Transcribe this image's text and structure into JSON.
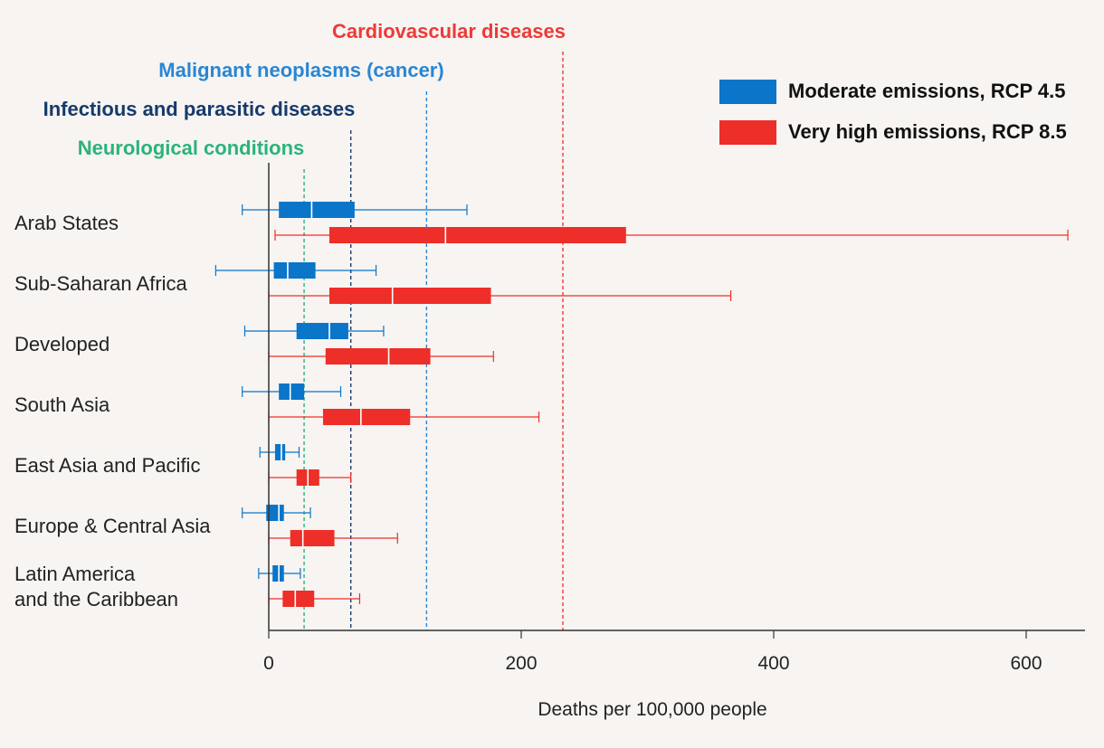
{
  "chart_data": {
    "type": "box",
    "xlabel": "Deaths per 100,000 people",
    "xlim": [
      0,
      650
    ],
    "xticks": [
      0,
      200,
      400,
      600
    ],
    "categories": [
      "Arab States",
      "Sub-Saharan Africa",
      "Developed",
      "South Asia",
      "East Asia and Pacific",
      "Europe & Central Asia",
      "Latin America and the Caribbean"
    ],
    "category_lines": [
      [
        "Arab States"
      ],
      [
        "Sub-Saharan Africa"
      ],
      [
        "Developed"
      ],
      [
        "South Asia"
      ],
      [
        "East Asia and Pacific"
      ],
      [
        "Europe & Central Asia"
      ],
      [
        "Latin America",
        "and the Caribbean"
      ]
    ],
    "series": [
      {
        "name": "Moderate emissions, RCP 4.5",
        "color": "#0a75c9",
        "boxes": [
          {
            "whisker_low": -21,
            "q1": 8,
            "median": 34,
            "q3": 68,
            "whisker_high": 157
          },
          {
            "whisker_low": -42,
            "q1": 4,
            "median": 15,
            "q3": 37,
            "whisker_high": 85
          },
          {
            "whisker_low": -19,
            "q1": 22,
            "median": 48,
            "q3": 63,
            "whisker_high": 91
          },
          {
            "whisker_low": -21,
            "q1": 8,
            "median": 17,
            "q3": 28,
            "whisker_high": 57
          },
          {
            "whisker_low": -7,
            "q1": 5,
            "median": 10,
            "q3": 13,
            "whisker_high": 24
          },
          {
            "whisker_low": -21,
            "q1": -2,
            "median": 8,
            "q3": 12,
            "whisker_high": 33
          },
          {
            "whisker_low": -8,
            "q1": 3,
            "median": 8,
            "q3": 12,
            "whisker_high": 25
          }
        ]
      },
      {
        "name": "Very high emissions, RCP 8.5",
        "color": "#ee2e28",
        "boxes": [
          {
            "whisker_low": 5,
            "q1": 48,
            "median": 140,
            "q3": 283,
            "whisker_high": 633
          },
          {
            "whisker_low": 0,
            "q1": 48,
            "median": 98,
            "q3": 176,
            "whisker_high": 366
          },
          {
            "whisker_low": 0,
            "q1": 45,
            "median": 95,
            "q3": 128,
            "whisker_high": 178
          },
          {
            "whisker_low": 0,
            "q1": 43,
            "median": 73,
            "q3": 112,
            "whisker_high": 214
          },
          {
            "whisker_low": 0,
            "q1": 22,
            "median": 31,
            "q3": 40,
            "whisker_high": 65
          },
          {
            "whisker_low": 0,
            "q1": 17,
            "median": 27,
            "q3": 52,
            "whisker_high": 102
          },
          {
            "whisker_low": 0,
            "q1": 11,
            "median": 21,
            "q3": 36,
            "whisker_high": 72
          }
        ]
      }
    ],
    "reference_lines": [
      {
        "label": "Cardiovascular diseases",
        "value": 233,
        "color": "#ee3a37"
      },
      {
        "label": "Malignant neoplasms (cancer)",
        "value": 125,
        "color": "#2a86d2"
      },
      {
        "label": "Infectious and parasitic diseases",
        "value": 65,
        "color": "#173a6b"
      },
      {
        "label": "Neurological conditions",
        "value": 28,
        "color": "#2bb37a"
      }
    ],
    "legend": {
      "position": "top-right"
    },
    "grid": false
  }
}
